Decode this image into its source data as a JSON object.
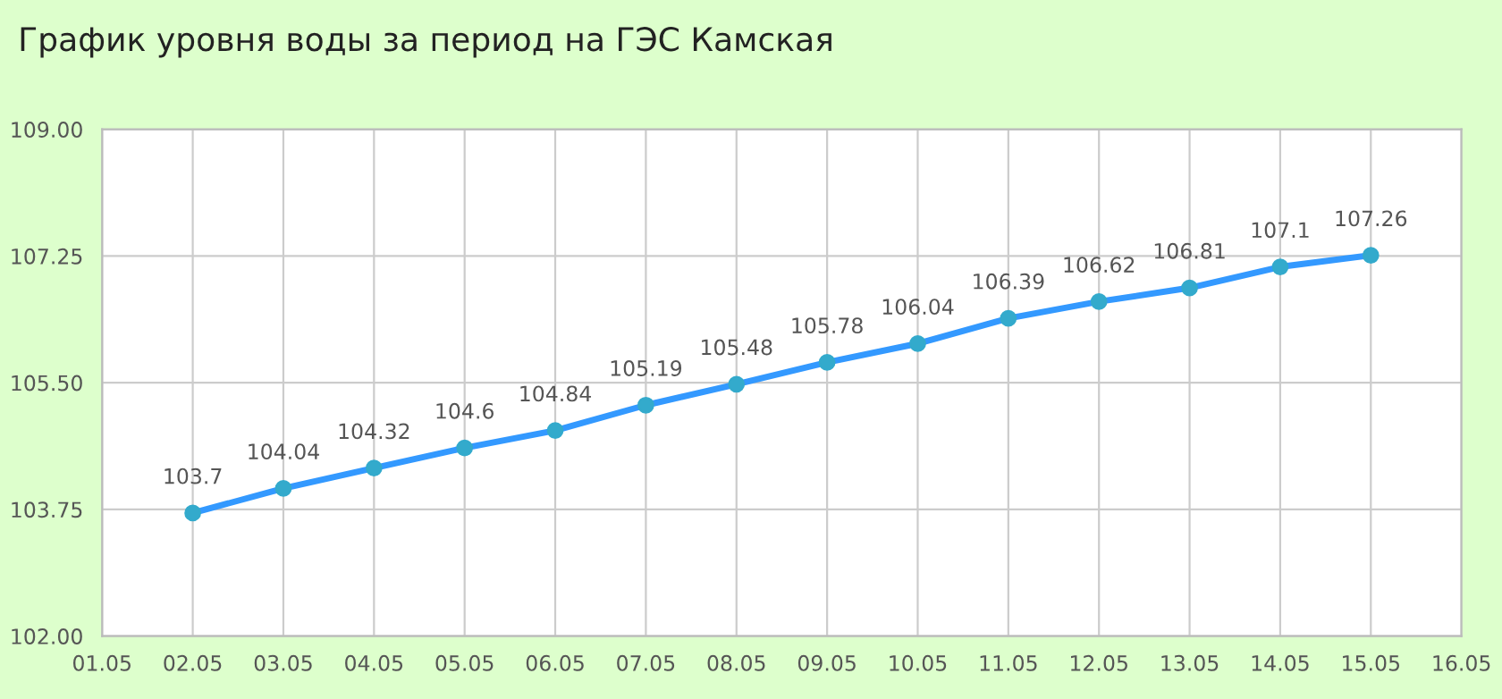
{
  "chart_data": {
    "type": "line",
    "title": "График уровня воды за период на ГЭС Камская",
    "categories": [
      "01.05",
      "02.05",
      "03.05",
      "04.05",
      "05.05",
      "06.05",
      "07.05",
      "08.05",
      "09.05",
      "10.05",
      "11.05",
      "12.05",
      "13.05",
      "14.05",
      "15.05",
      "16.05"
    ],
    "series": [
      {
        "color": "#3399ff",
        "values": [
          null,
          103.7,
          104.04,
          104.32,
          104.6,
          104.84,
          105.19,
          105.48,
          105.78,
          106.04,
          106.39,
          106.62,
          106.81,
          107.1,
          107.26,
          null
        ]
      }
    ],
    "ylim": [
      102,
      109
    ],
    "yticks": [
      {
        "value": 102,
        "label": "102.00"
      },
      {
        "value": 103.75,
        "label": "103.75"
      },
      {
        "value": 105.5,
        "label": "105.50"
      },
      {
        "value": 107.25,
        "label": "107.25"
      },
      {
        "value": 109,
        "label": "109.00"
      }
    ],
    "grid": true,
    "marker": "circle",
    "line_style": "solid",
    "data_labels": true
  }
}
